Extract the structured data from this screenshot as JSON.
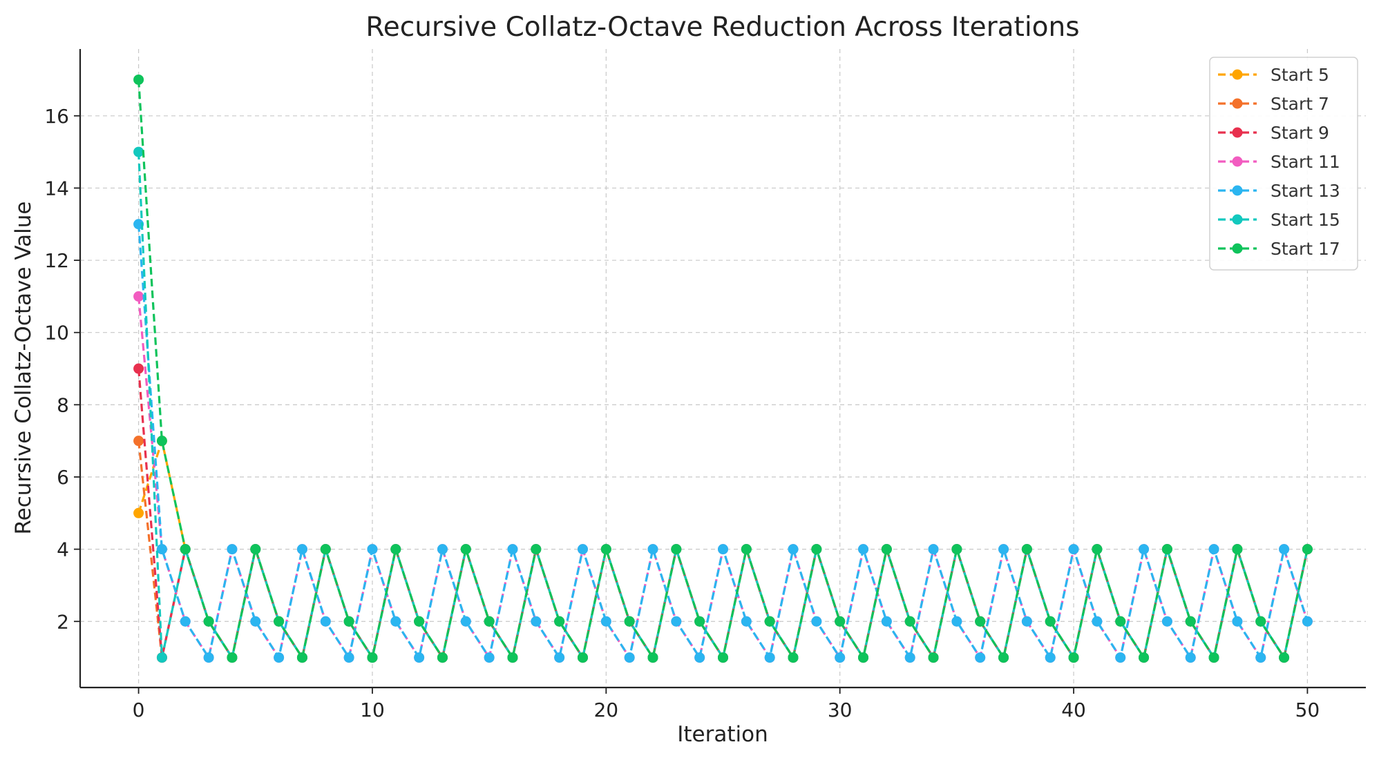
{
  "chart_data": {
    "type": "line",
    "title": "Recursive Collatz-Octave Reduction Across Iterations",
    "xlabel": "Iteration",
    "ylabel": "Recursive Collatz-Octave Value",
    "xlim": [
      -2.5,
      52.5
    ],
    "ylim": [
      0.17,
      17.85
    ],
    "xticks": [
      0,
      10,
      20,
      30,
      40,
      50
    ],
    "yticks": [
      2,
      4,
      6,
      8,
      10,
      12,
      14,
      16
    ],
    "grid": true,
    "line_style": "dashed",
    "marker": "circle",
    "legend_position": "top-right",
    "x": [
      0,
      1,
      2,
      3,
      4,
      5,
      6,
      7,
      8,
      9,
      10,
      11,
      12,
      13,
      14,
      15,
      16,
      17,
      18,
      19,
      20,
      21,
      22,
      23,
      24,
      25,
      26,
      27,
      28,
      29,
      30,
      31,
      32,
      33,
      34,
      35,
      36,
      37,
      38,
      39,
      40,
      41,
      42,
      43,
      44,
      45,
      46,
      47,
      48,
      49,
      50
    ],
    "series": [
      {
        "name": "Start 5",
        "color": "#FFA500",
        "values": [
          5,
          7,
          4,
          2,
          1,
          4,
          2,
          1,
          4,
          2,
          1,
          4,
          2,
          1,
          4,
          2,
          1,
          4,
          2,
          1,
          4,
          2,
          1,
          4,
          2,
          1,
          4,
          2,
          1,
          4,
          2,
          1,
          4,
          2,
          1,
          4,
          2,
          1,
          4,
          2,
          1,
          4,
          2,
          1,
          4,
          2,
          1,
          4,
          2,
          1,
          4
        ]
      },
      {
        "name": "Start 7",
        "color": "#F4712A",
        "values": [
          7,
          1,
          4,
          2,
          1,
          4,
          2,
          1,
          4,
          2,
          1,
          4,
          2,
          1,
          4,
          2,
          1,
          4,
          2,
          1,
          4,
          2,
          1,
          4,
          2,
          1,
          4,
          2,
          1,
          4,
          2,
          1,
          4,
          2,
          1,
          4,
          2,
          1,
          4,
          2,
          1,
          4,
          2,
          1,
          4,
          2,
          1,
          4,
          2,
          1,
          4
        ]
      },
      {
        "name": "Start 9",
        "color": "#E8304E",
        "values": [
          9,
          1,
          4,
          2,
          1,
          4,
          2,
          1,
          4,
          2,
          1,
          4,
          2,
          1,
          4,
          2,
          1,
          4,
          2,
          1,
          4,
          2,
          1,
          4,
          2,
          1,
          4,
          2,
          1,
          4,
          2,
          1,
          4,
          2,
          1,
          4,
          2,
          1,
          4,
          2,
          1,
          4,
          2,
          1,
          4,
          2,
          1,
          4,
          2,
          1,
          4
        ]
      },
      {
        "name": "Start 11",
        "color": "#F25CC0",
        "values": [
          11,
          4,
          2,
          1,
          4,
          2,
          1,
          4,
          2,
          1,
          4,
          2,
          1,
          4,
          2,
          1,
          4,
          2,
          1,
          4,
          2,
          1,
          4,
          2,
          1,
          4,
          2,
          1,
          4,
          2,
          1,
          4,
          2,
          1,
          4,
          2,
          1,
          4,
          2,
          1,
          4,
          2,
          1,
          4,
          2,
          1,
          4,
          2,
          1,
          4,
          2
        ]
      },
      {
        "name": "Start 13",
        "color": "#2BB5F0",
        "values": [
          13,
          4,
          2,
          1,
          4,
          2,
          1,
          4,
          2,
          1,
          4,
          2,
          1,
          4,
          2,
          1,
          4,
          2,
          1,
          4,
          2,
          1,
          4,
          2,
          1,
          4,
          2,
          1,
          4,
          2,
          1,
          4,
          2,
          1,
          4,
          2,
          1,
          4,
          2,
          1,
          4,
          2,
          1,
          4,
          2,
          1,
          4,
          2,
          1,
          4,
          2
        ]
      },
      {
        "name": "Start 15",
        "color": "#12C8BE",
        "values": [
          15,
          1,
          4,
          2,
          1,
          4,
          2,
          1,
          4,
          2,
          1,
          4,
          2,
          1,
          4,
          2,
          1,
          4,
          2,
          1,
          4,
          2,
          1,
          4,
          2,
          1,
          4,
          2,
          1,
          4,
          2,
          1,
          4,
          2,
          1,
          4,
          2,
          1,
          4,
          2,
          1,
          4,
          2,
          1,
          4,
          2,
          1,
          4,
          2,
          1,
          4
        ]
      },
      {
        "name": "Start 17",
        "color": "#0EC35B",
        "values": [
          17,
          7,
          4,
          2,
          1,
          4,
          2,
          1,
          4,
          2,
          1,
          4,
          2,
          1,
          4,
          2,
          1,
          4,
          2,
          1,
          4,
          2,
          1,
          4,
          2,
          1,
          4,
          2,
          1,
          4,
          2,
          1,
          4,
          2,
          1,
          4,
          2,
          1,
          4,
          2,
          1,
          4,
          2,
          1,
          4,
          2,
          1,
          4,
          2,
          1,
          4
        ]
      }
    ]
  }
}
